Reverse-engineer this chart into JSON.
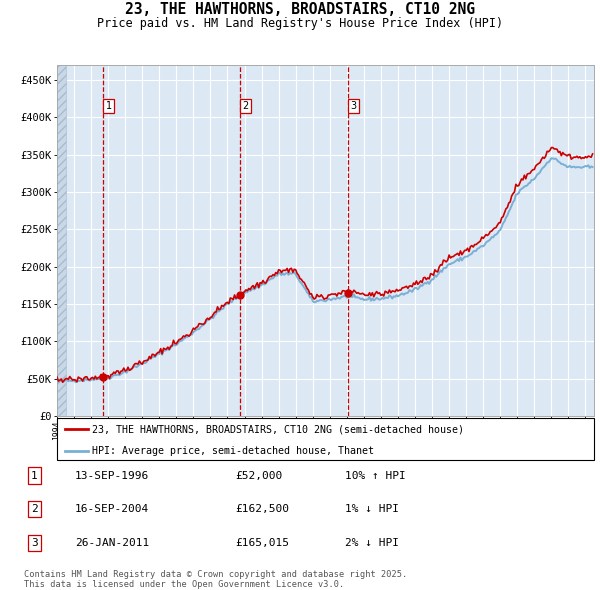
{
  "title": "23, THE HAWTHORNS, BROADSTAIRS, CT10 2NG",
  "subtitle": "Price paid vs. HM Land Registry's House Price Index (HPI)",
  "ylim": [
    0,
    470000
  ],
  "yticks": [
    0,
    50000,
    100000,
    150000,
    200000,
    250000,
    300000,
    350000,
    400000,
    450000
  ],
  "ytick_labels": [
    "£0",
    "£50K",
    "£100K",
    "£150K",
    "£200K",
    "£250K",
    "£300K",
    "£350K",
    "£400K",
    "£450K"
  ],
  "plot_bg_color": "#dce9f5",
  "grid_color": "#ffffff",
  "legend_label_red": "23, THE HAWTHORNS, BROADSTAIRS, CT10 2NG (semi-detached house)",
  "legend_label_blue": "HPI: Average price, semi-detached house, Thanet",
  "sale_markers": [
    {
      "label": "1",
      "date": 1996.71,
      "price": 52000
    },
    {
      "label": "2",
      "date": 2004.71,
      "price": 162500
    },
    {
      "label": "3",
      "date": 2011.07,
      "price": 165015
    }
  ],
  "table_rows": [
    {
      "num": "1",
      "date": "13-SEP-1996",
      "price": "£52,000",
      "hpi": "10% ↑ HPI"
    },
    {
      "num": "2",
      "date": "16-SEP-2004",
      "price": "£162,500",
      "hpi": "1% ↓ HPI"
    },
    {
      "num": "3",
      "date": "26-JAN-2011",
      "price": "£165,015",
      "hpi": "2% ↓ HPI"
    }
  ],
  "footer": "Contains HM Land Registry data © Crown copyright and database right 2025.\nThis data is licensed under the Open Government Licence v3.0.",
  "red_color": "#cc0000",
  "blue_color": "#7bafd4",
  "xlim_start": 1994.0,
  "xlim_end": 2025.5
}
